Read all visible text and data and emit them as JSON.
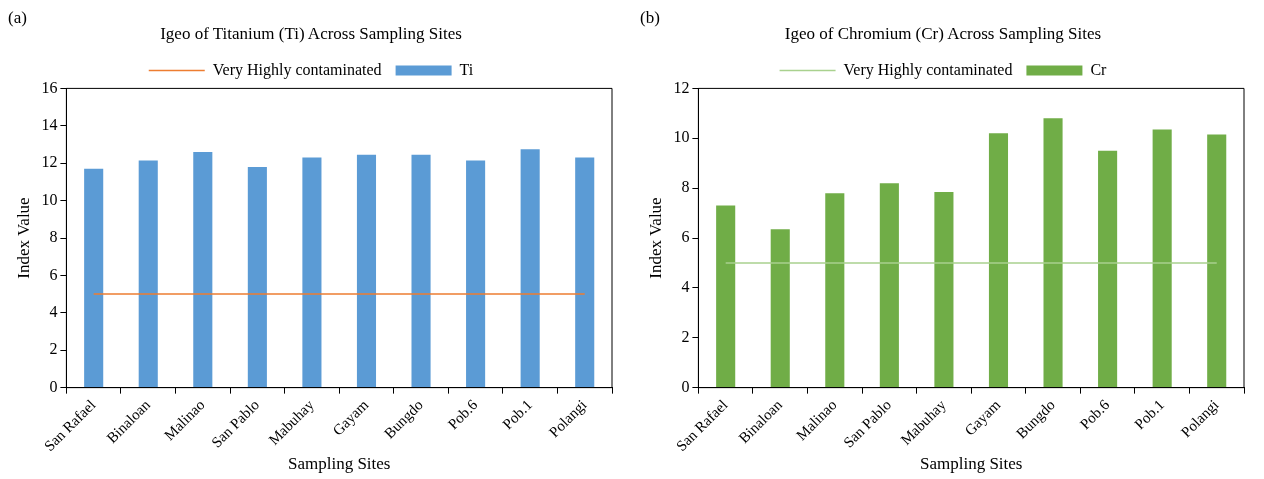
{
  "chart_data": [
    {
      "type": "bar",
      "title": "Igeo of Titanium (Ti) Across Sampling Sites",
      "xlabel": "Sampling Sites",
      "ylabel": "Index Value",
      "annotations": [
        "(a)"
      ],
      "categories": [
        "San Rafael",
        "Binaloan",
        "Malinao",
        "San Pablo",
        "Mabuhay",
        "Gayam",
        "Bungdo",
        "Pob.6",
        "Pob.1",
        "Polangi"
      ],
      "series": [
        {
          "name": "Ti",
          "color": "#5b9bd5",
          "values": [
            11.7,
            12.15,
            12.6,
            11.8,
            12.3,
            12.45,
            12.45,
            12.15,
            12.75,
            12.3
          ]
        },
        {
          "name": "Very Highly contaminated",
          "type": "line",
          "color": "#ed7d31",
          "marker": "none",
          "values": [
            5,
            5,
            5,
            5,
            5,
            5,
            5,
            5,
            5,
            5
          ]
        }
      ],
      "ylim": [
        0,
        16
      ],
      "yticks": [
        0,
        2,
        4,
        6,
        8,
        10,
        12,
        14,
        16
      ],
      "legend": "top",
      "grid": false
    },
    {
      "type": "bar",
      "title": "Igeo of Chromium (Cr) Across Sampling Sites",
      "xlabel": "Sampling Sites",
      "ylabel": "Index Value",
      "annotations": [
        "(b)"
      ],
      "categories": [
        "San Rafael",
        "Binaloan",
        "Malinao",
        "San Pablo",
        "Mabuhay",
        "Gayam",
        "Bungdo",
        "Pob.6",
        "Pob.1",
        "Polangi"
      ],
      "series": [
        {
          "name": "Cr",
          "color": "#70ad47",
          "values": [
            7.3,
            6.35,
            7.8,
            8.2,
            7.85,
            10.2,
            10.8,
            9.5,
            10.35,
            10.15
          ]
        },
        {
          "name": "Very Highly contaminated",
          "type": "line",
          "color": "#a9d18e",
          "marker": "none",
          "values": [
            5,
            5,
            5,
            5,
            5,
            5,
            5,
            5,
            5,
            5
          ]
        }
      ],
      "ylim": [
        0,
        12
      ],
      "yticks": [
        0,
        2,
        4,
        6,
        8,
        10,
        12
      ],
      "legend": "top",
      "grid": false
    }
  ]
}
